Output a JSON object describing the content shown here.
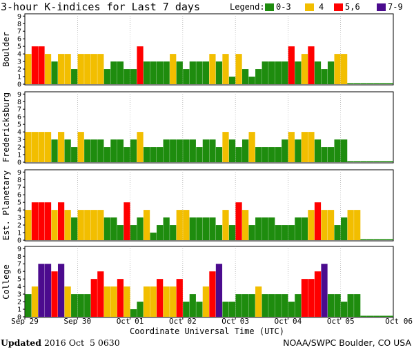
{
  "chart_data": {
    "type": "bar",
    "title": "3-hour K-indices for Last 7 days",
    "xlabel": "Coordinate Universal Time (UTC)",
    "ylim": [
      0,
      9
    ],
    "y_ticks": [
      "0",
      "1",
      "2",
      "3",
      "4",
      "5",
      "6",
      "7",
      "8",
      "9"
    ],
    "x_tick_labels": [
      "Sep 29",
      "Sep 30",
      "Oct 01",
      "Oct 02",
      "Oct 03",
      "Oct 04",
      "Oct 05",
      "Oct 06"
    ],
    "legend": {
      "label": "Legend:",
      "position": "top-right",
      "items": [
        {
          "label": "0-3",
          "color": "#1e8c0e"
        },
        {
          "label": "4",
          "color": "#f2be00"
        },
        {
          "label": "5,6",
          "color": "#ff0000"
        },
        {
          "label": "7-9",
          "color": "#4b0b8e"
        }
      ]
    },
    "panels": [
      {
        "name": "Boulder",
        "values": [
          4,
          5,
          5,
          4,
          3,
          4,
          4,
          2,
          4,
          4,
          4,
          4,
          2,
          3,
          3,
          2,
          2,
          5,
          3,
          3,
          3,
          3,
          4,
          3,
          2,
          3,
          3,
          3,
          4,
          3,
          4,
          1,
          4,
          2,
          1,
          2,
          3,
          3,
          3,
          3,
          5,
          3,
          4,
          5,
          3,
          2,
          3,
          4,
          4,
          0,
          0,
          0,
          0,
          0,
          0,
          0
        ]
      },
      {
        "name": "Fredericksburg",
        "values": [
          4,
          4,
          4,
          4,
          3,
          4,
          3,
          2,
          4,
          3,
          3,
          3,
          2,
          3,
          3,
          2,
          3,
          4,
          2,
          2,
          2,
          3,
          3,
          3,
          3,
          3,
          2,
          3,
          3,
          2,
          4,
          3,
          2,
          3,
          4,
          2,
          2,
          2,
          2,
          3,
          4,
          3,
          4,
          4,
          3,
          2,
          2,
          3,
          3,
          0,
          0,
          0,
          0,
          0,
          0,
          0
        ]
      },
      {
        "name": "Est. Planetary",
        "values": [
          4,
          5,
          5,
          5,
          4,
          5,
          4,
          3,
          4,
          4,
          4,
          4,
          3,
          3,
          2,
          5,
          2,
          3,
          4,
          1,
          2,
          3,
          2,
          4,
          4,
          3,
          3,
          3,
          3,
          2,
          4,
          2,
          5,
          4,
          2,
          3,
          3,
          3,
          2,
          2,
          2,
          3,
          3,
          4,
          5,
          4,
          4,
          2,
          3,
          4,
          4,
          0,
          0,
          0,
          0,
          0
        ]
      },
      {
        "name": "College",
        "values": [
          3,
          4,
          7,
          7,
          6,
          7,
          4,
          3,
          3,
          3,
          5,
          6,
          4,
          4,
          5,
          4,
          1,
          2,
          4,
          4,
          5,
          4,
          4,
          5,
          2,
          3,
          2,
          4,
          6,
          7,
          2,
          2,
          3,
          3,
          3,
          4,
          3,
          3,
          3,
          3,
          2,
          3,
          5,
          5,
          6,
          7,
          3,
          3,
          2,
          3,
          3,
          0,
          0,
          0,
          0,
          0
        ]
      }
    ]
  },
  "footer": {
    "updated_label": "Updated",
    "updated_value": "2016 Oct  5 0630",
    "source": "NOAA/SWPC Boulder, CO USA"
  }
}
